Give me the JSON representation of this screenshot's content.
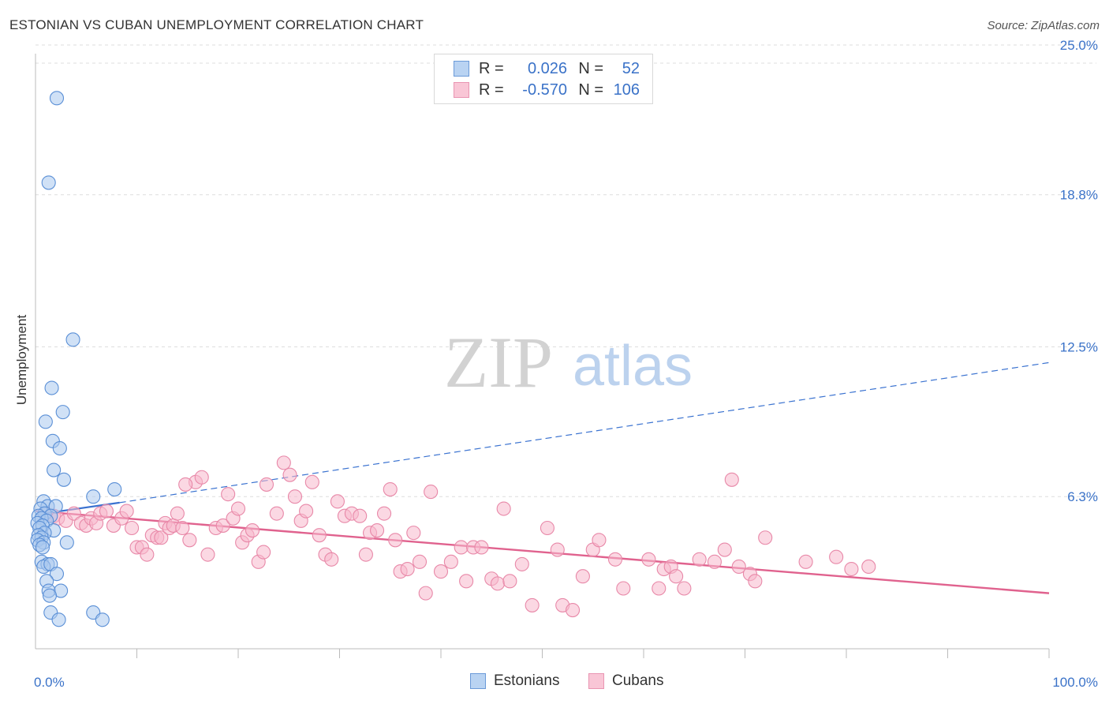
{
  "header": {
    "title": "ESTONIAN VS CUBAN UNEMPLOYMENT CORRELATION CHART",
    "source": "Source: ZipAtlas.com"
  },
  "watermark": {
    "zip": "ZIP",
    "atlas": "atlas"
  },
  "legend": {
    "rows": [
      {
        "r_label": "R =",
        "r_value": "0.026",
        "n_label": "N =",
        "n_value": "52"
      },
      {
        "r_label": "R =",
        "r_value": "-0.570",
        "n_label": "N =",
        "n_value": "106"
      }
    ]
  },
  "bottom_legend": {
    "estonians": "Estonians",
    "cubans": "Cubans"
  },
  "colors": {
    "estonian_fill": "#a9c8ee",
    "estonian_stroke": "#5a8fd6",
    "estonian_line": "#3a72d0",
    "cuban_fill": "#f7b8cc",
    "cuban_stroke": "#e888a8",
    "cuban_line": "#e0628e",
    "tick_label": "#3a72c8",
    "grid": "#dddddd"
  },
  "chart_data": {
    "type": "scatter",
    "title": "ESTONIAN VS CUBAN UNEMPLOYMENT CORRELATION CHART",
    "xlabel": "",
    "ylabel": "Unemployment",
    "xlim": [
      0,
      100
    ],
    "ylim": [
      0,
      26
    ],
    "x_tick_labels": [
      {
        "value": 0,
        "label": "0.0%"
      },
      {
        "value": 100,
        "label": "100.0%"
      }
    ],
    "y_ticks": [
      {
        "value": 6.3,
        "label": "6.3%"
      },
      {
        "value": 12.5,
        "label": "12.5%"
      },
      {
        "value": 18.8,
        "label": "18.8%"
      },
      {
        "value": 25.0,
        "label": "25.0%"
      }
    ],
    "grid": "horizontal dashed",
    "series": [
      {
        "name": "Estonians",
        "r": 0.026,
        "n": 52,
        "trend_solid": {
          "x": [
            0.0,
            8.3
          ],
          "y": [
            5.55,
            6.05
          ]
        },
        "trend_dashed": {
          "x": [
            8.3,
            100.0
          ],
          "y": [
            6.05,
            11.85
          ]
        },
        "points": [
          [
            2.1,
            22.8
          ],
          [
            1.3,
            19.3
          ],
          [
            3.7,
            12.8
          ],
          [
            1.6,
            10.8
          ],
          [
            2.7,
            9.8
          ],
          [
            1.0,
            9.4
          ],
          [
            1.7,
            8.6
          ],
          [
            2.4,
            8.3
          ],
          [
            1.8,
            7.4
          ],
          [
            2.8,
            7.0
          ],
          [
            7.8,
            6.6
          ],
          [
            5.7,
            6.3
          ],
          [
            0.8,
            6.1
          ],
          [
            1.2,
            5.9
          ],
          [
            2.0,
            5.9
          ],
          [
            0.5,
            5.8
          ],
          [
            0.9,
            5.6
          ],
          [
            1.5,
            5.5
          ],
          [
            0.3,
            5.5
          ],
          [
            0.6,
            5.4
          ],
          [
            1.1,
            5.3
          ],
          [
            0.2,
            5.2
          ],
          [
            0.7,
            5.1
          ],
          [
            0.4,
            5.0
          ],
          [
            1.8,
            4.9
          ],
          [
            0.9,
            4.8
          ],
          [
            0.3,
            4.7
          ],
          [
            0.6,
            4.6
          ],
          [
            0.2,
            4.5
          ],
          [
            0.8,
            4.4
          ],
          [
            3.1,
            4.4
          ],
          [
            0.4,
            4.3
          ],
          [
            0.7,
            4.2
          ],
          [
            0.6,
            3.6
          ],
          [
            1.2,
            3.5
          ],
          [
            0.8,
            3.4
          ],
          [
            1.5,
            3.5
          ],
          [
            2.1,
            3.1
          ],
          [
            1.1,
            2.8
          ],
          [
            1.3,
            2.4
          ],
          [
            2.5,
            2.4
          ],
          [
            1.4,
            2.2
          ],
          [
            1.5,
            1.5
          ],
          [
            2.3,
            1.2
          ],
          [
            5.7,
            1.5
          ],
          [
            6.6,
            1.2
          ]
        ]
      },
      {
        "name": "Cubans",
        "r": -0.57,
        "n": 106,
        "trend": {
          "x": [
            0.0,
            100.0
          ],
          "y": [
            5.7,
            2.3
          ]
        },
        "points": [
          [
            1.0,
            5.6
          ],
          [
            1.8,
            5.5
          ],
          [
            2.2,
            5.4
          ],
          [
            3.0,
            5.3
          ],
          [
            3.8,
            5.6
          ],
          [
            4.5,
            5.2
          ],
          [
            5.0,
            5.1
          ],
          [
            5.5,
            5.4
          ],
          [
            6.0,
            5.2
          ],
          [
            6.4,
            5.6
          ],
          [
            7.0,
            5.7
          ],
          [
            7.7,
            5.1
          ],
          [
            8.5,
            5.4
          ],
          [
            9.0,
            5.7
          ],
          [
            9.5,
            5.0
          ],
          [
            10.0,
            4.2
          ],
          [
            10.5,
            4.2
          ],
          [
            11.0,
            3.9
          ],
          [
            11.5,
            4.7
          ],
          [
            12.0,
            4.6
          ],
          [
            12.4,
            4.6
          ],
          [
            12.8,
            5.2
          ],
          [
            13.2,
            5.0
          ],
          [
            13.6,
            5.1
          ],
          [
            14.0,
            5.6
          ],
          [
            14.5,
            5.0
          ],
          [
            15.2,
            4.5
          ],
          [
            15.8,
            6.9
          ],
          [
            14.8,
            6.8
          ],
          [
            16.4,
            7.1
          ],
          [
            17.0,
            3.9
          ],
          [
            17.8,
            5.0
          ],
          [
            18.5,
            5.1
          ],
          [
            19.0,
            6.4
          ],
          [
            19.5,
            5.4
          ],
          [
            20.0,
            5.8
          ],
          [
            20.4,
            4.4
          ],
          [
            20.9,
            4.7
          ],
          [
            21.4,
            4.9
          ],
          [
            22.0,
            3.6
          ],
          [
            22.5,
            4.0
          ],
          [
            22.8,
            6.8
          ],
          [
            23.8,
            5.6
          ],
          [
            24.5,
            7.7
          ],
          [
            25.1,
            7.2
          ],
          [
            25.6,
            6.3
          ],
          [
            26.2,
            5.3
          ],
          [
            26.7,
            5.7
          ],
          [
            27.3,
            6.9
          ],
          [
            28.0,
            4.7
          ],
          [
            28.6,
            3.9
          ],
          [
            29.2,
            3.7
          ],
          [
            29.8,
            6.1
          ],
          [
            30.5,
            5.5
          ],
          [
            31.2,
            5.6
          ],
          [
            32.0,
            5.5
          ],
          [
            32.6,
            3.9
          ],
          [
            33.0,
            4.8
          ],
          [
            33.7,
            4.9
          ],
          [
            34.4,
            5.6
          ],
          [
            35.0,
            6.6
          ],
          [
            35.5,
            4.5
          ],
          [
            36.0,
            3.2
          ],
          [
            36.7,
            3.3
          ],
          [
            37.3,
            4.8
          ],
          [
            37.9,
            3.6
          ],
          [
            38.5,
            2.3
          ],
          [
            39.0,
            6.5
          ],
          [
            40.0,
            3.2
          ],
          [
            41.0,
            3.6
          ],
          [
            42.0,
            4.2
          ],
          [
            42.5,
            2.8
          ],
          [
            43.2,
            4.2
          ],
          [
            44.0,
            4.2
          ],
          [
            45.0,
            2.9
          ],
          [
            45.6,
            2.7
          ],
          [
            46.2,
            5.8
          ],
          [
            46.8,
            2.8
          ],
          [
            48.0,
            3.5
          ],
          [
            49.0,
            1.8
          ],
          [
            50.5,
            5.0
          ],
          [
            51.5,
            4.1
          ],
          [
            52.0,
            1.8
          ],
          [
            53.0,
            1.6
          ],
          [
            54.0,
            3.0
          ],
          [
            55.0,
            4.1
          ],
          [
            55.6,
            4.5
          ],
          [
            57.2,
            3.7
          ],
          [
            58.0,
            2.5
          ],
          [
            60.5,
            3.7
          ],
          [
            61.5,
            2.5
          ],
          [
            62.0,
            3.3
          ],
          [
            62.7,
            3.4
          ],
          [
            63.2,
            3.0
          ],
          [
            64.0,
            2.5
          ],
          [
            65.5,
            3.7
          ],
          [
            67.0,
            3.6
          ],
          [
            68.0,
            4.1
          ],
          [
            68.7,
            7.0
          ],
          [
            69.4,
            3.4
          ],
          [
            70.5,
            3.1
          ],
          [
            71.0,
            2.8
          ],
          [
            72.0,
            4.6
          ],
          [
            76.0,
            3.6
          ],
          [
            79.0,
            3.8
          ],
          [
            80.5,
            3.3
          ],
          [
            82.2,
            3.4
          ]
        ]
      }
    ]
  }
}
